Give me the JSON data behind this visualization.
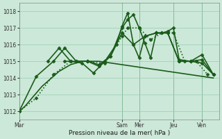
{
  "background_color": "#cce8d8",
  "grid_color": "#99ccb0",
  "line_color": "#1a5c1a",
  "xlabel": "Pression niveau de la mer( hPa )",
  "ylim": [
    1011.5,
    1018.5
  ],
  "yticks": [
    1012,
    1013,
    1014,
    1015,
    1016,
    1017,
    1018
  ],
  "day_labels": [
    "Mar",
    "Sam",
    "Mer",
    "Jeu",
    "Ven"
  ],
  "day_positions": [
    0,
    18,
    21,
    27,
    32
  ],
  "n_points": 35,
  "series": [
    {
      "x": [
        0,
        1,
        2,
        3,
        4,
        5,
        6,
        7,
        8,
        9,
        10,
        11,
        12,
        13,
        14,
        15,
        16,
        17,
        18,
        19,
        20,
        21,
        22,
        23,
        24,
        25,
        26,
        27,
        28,
        29,
        30,
        31,
        32,
        33,
        34
      ],
      "y": [
        1012.0,
        1012.3,
        1012.7,
        1013.1,
        1013.5,
        1013.8,
        1014.1,
        1014.4,
        1014.6,
        1014.8,
        1014.9,
        1015.0,
        1015.0,
        1015.0,
        1015.0,
        1014.95,
        1014.9,
        1014.85,
        1014.8,
        1014.75,
        1014.7,
        1014.65,
        1014.6,
        1014.55,
        1014.5,
        1014.45,
        1014.4,
        1014.35,
        1014.3,
        1014.25,
        1014.2,
        1014.15,
        1014.1,
        1014.05,
        1014.0
      ],
      "style": "solid",
      "marker": null,
      "linewidth": 1.2,
      "zorder": 1
    },
    {
      "x": [
        0,
        3,
        6,
        9,
        12,
        15,
        18,
        19,
        21,
        23,
        25,
        27,
        29,
        31,
        33
      ],
      "y": [
        1012.0,
        1012.8,
        1014.2,
        1015.0,
        1015.0,
        1014.9,
        1016.5,
        1017.0,
        1017.0,
        1016.3,
        1016.7,
        1016.7,
        1015.0,
        1015.0,
        1014.2
      ],
      "style": "dotted",
      "marker": "D",
      "linewidth": 1.2,
      "markersize": 2.5,
      "zorder": 2
    },
    {
      "x": [
        0,
        3,
        6,
        8,
        10,
        12,
        14,
        16,
        18,
        20,
        22,
        24,
        26,
        28,
        30,
        32,
        34
      ],
      "y": [
        1012.0,
        1014.1,
        1015.0,
        1015.8,
        1015.0,
        1015.0,
        1014.8,
        1015.3,
        1016.7,
        1016.0,
        1016.5,
        1016.7,
        1016.7,
        1015.0,
        1015.0,
        1015.1,
        1014.2
      ],
      "style": "solid",
      "marker": "D",
      "linewidth": 1.2,
      "markersize": 2.5,
      "zorder": 3
    },
    {
      "x": [
        8,
        10,
        12,
        14,
        16,
        18,
        19,
        20,
        21,
        22,
        23,
        24,
        25,
        26,
        27,
        28,
        30,
        32,
        34
      ],
      "y": [
        1015.0,
        1015.0,
        1015.0,
        1014.7,
        1015.3,
        1017.0,
        1017.5,
        1017.8,
        1017.0,
        1016.1,
        1015.2,
        1016.7,
        1016.7,
        1016.8,
        1017.0,
        1015.1,
        1015.0,
        1014.9,
        1014.2
      ],
      "style": "solid",
      "marker": "D",
      "linewidth": 1.2,
      "markersize": 2.5,
      "zorder": 4
    },
    {
      "x": [
        5,
        7,
        9,
        11,
        13,
        15,
        17,
        18,
        19,
        20,
        21,
        22,
        24,
        26,
        28,
        30,
        32,
        34
      ],
      "y": [
        1015.0,
        1015.8,
        1015.0,
        1014.9,
        1014.3,
        1015.0,
        1016.0,
        1017.1,
        1017.9,
        1016.0,
        1015.2,
        1016.5,
        1016.7,
        1016.7,
        1015.0,
        1015.0,
        1015.4,
        1014.2
      ],
      "style": "solid",
      "marker": "D",
      "linewidth": 1.2,
      "markersize": 2.5,
      "zorder": 5
    }
  ]
}
